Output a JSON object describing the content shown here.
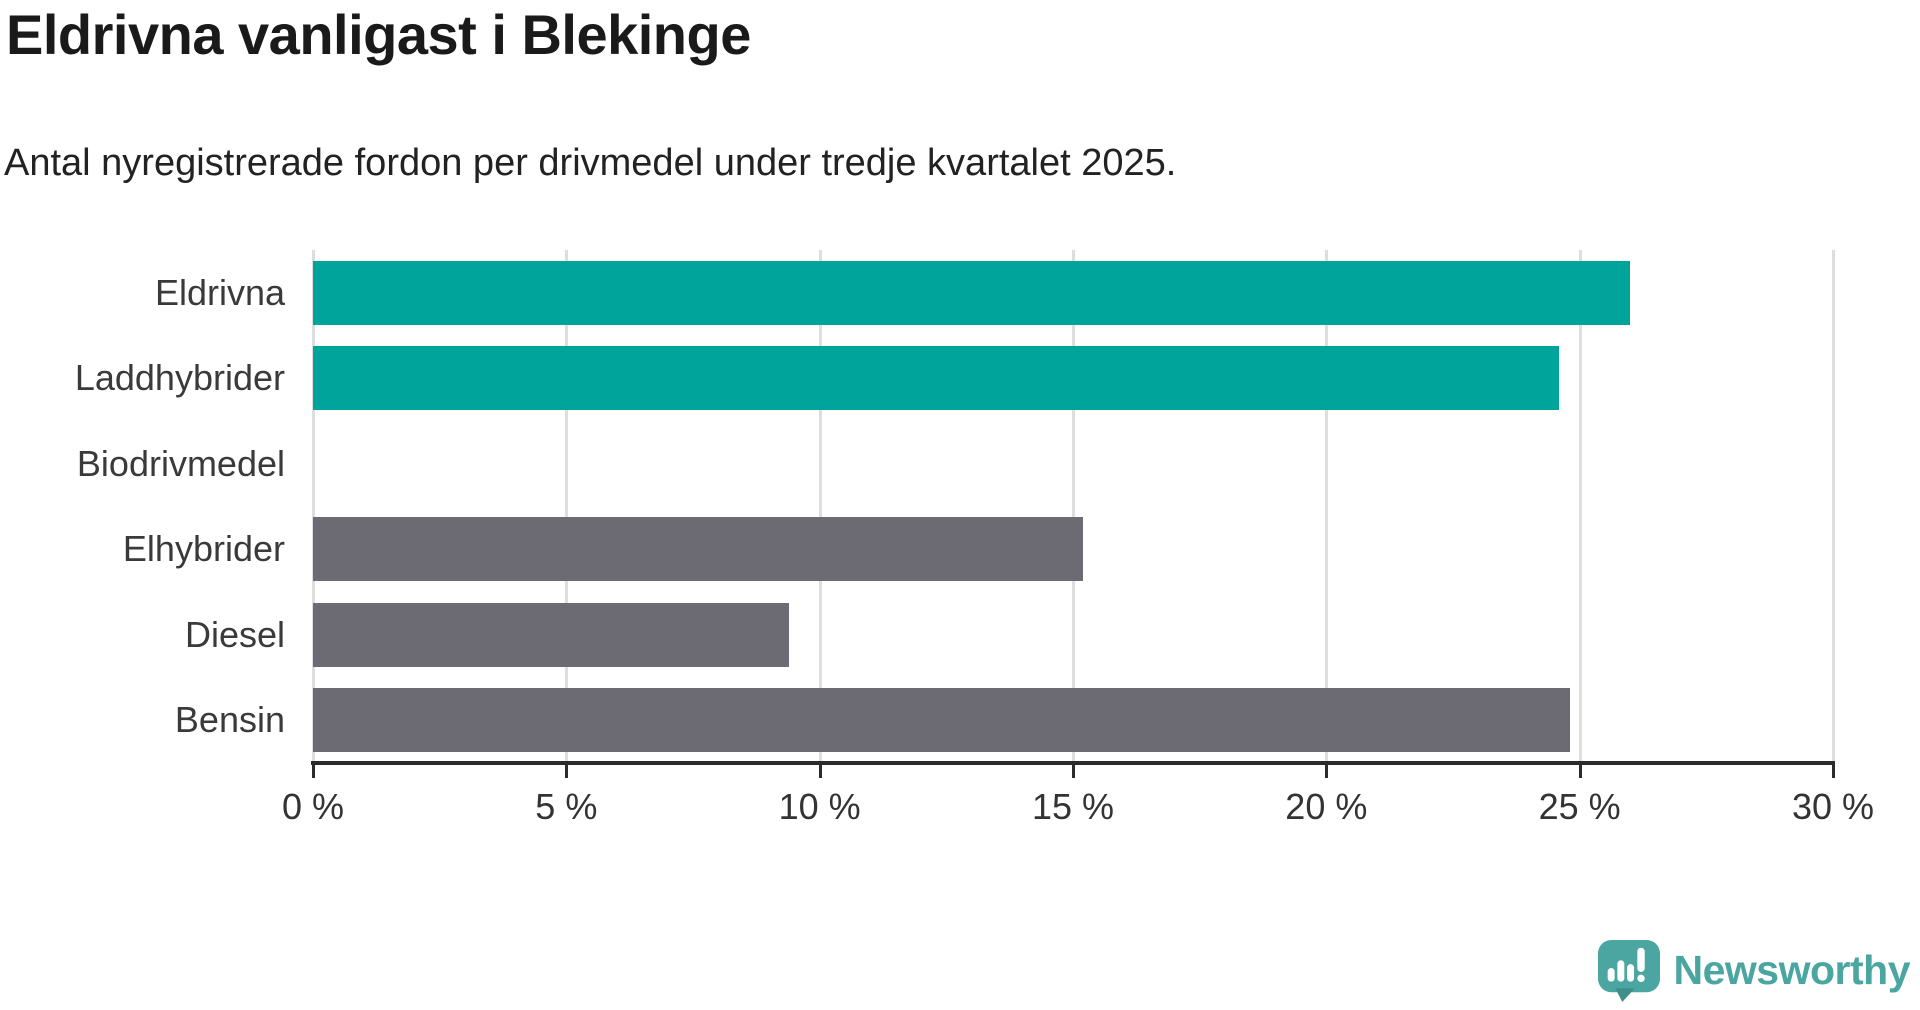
{
  "title": "Eldrivna vanligast i Blekinge",
  "subtitle": "Antal nyregistrerade fordon per drivmedel under tredje kvartalet 2025.",
  "chart_data": {
    "type": "bar",
    "orientation": "horizontal",
    "categories": [
      "Eldrivna",
      "Laddhybrider",
      "Biodrivmedel",
      "Elhybrider",
      "Diesel",
      "Bensin"
    ],
    "values": [
      26.0,
      24.6,
      0,
      15.2,
      9.4,
      24.8
    ],
    "unit": "%",
    "xlim": [
      0,
      30
    ],
    "x_ticks": [
      0,
      5,
      10,
      15,
      20,
      25,
      30
    ],
    "x_tick_labels": [
      "0 %",
      "5 %",
      "10 %",
      "15 %",
      "20 %",
      "25 %",
      "30 %"
    ],
    "bar_colors": [
      "#00A49A",
      "#00A49A",
      "#6C6B74",
      "#6C6B74",
      "#6C6B74",
      "#6C6B74"
    ],
    "grid": true,
    "legend": false,
    "title": "Eldrivna vanligast i Blekinge",
    "xlabel": "",
    "ylabel": ""
  },
  "colors": {
    "accent_teal": "#00A49A",
    "bar_gray": "#6C6B74",
    "gridline": "#DEDEDE",
    "axis": "#2B2B2B",
    "text_dark": "#1A1A1A",
    "text_gray": "#333333",
    "brand_teal": "#4BA6A1",
    "brand_teal_dark": "#3E8F8B"
  },
  "branding": {
    "logo_text": "Newsworthy",
    "logo_icon": "newsworthy-bubble-barchart-icon"
  }
}
